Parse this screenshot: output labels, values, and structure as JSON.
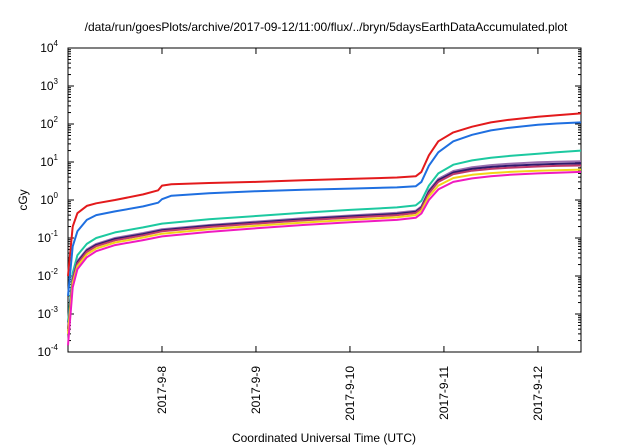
{
  "chart_data": {
    "type": "line",
    "title": "/data/run/goesPlots/archive/2017-09-12/11:00/flux/../bryn/5daysEarthDataAccumulated.plot",
    "xlabel": "Coordinated Universal Time (UTC)",
    "ylabel": "cGy",
    "y_scale": "log",
    "ylim": [
      0.0001,
      10000
    ],
    "xlim": [
      "2017-09-07T00:00",
      "2017-09-12T11:00"
    ],
    "grid": false,
    "legend": "none",
    "y_ticks": [
      {
        "base": "10",
        "exp": "-4",
        "value": 0.0001
      },
      {
        "base": "10",
        "exp": "-3",
        "value": 0.001
      },
      {
        "base": "10",
        "exp": "-2",
        "value": 0.01
      },
      {
        "base": "10",
        "exp": "-1",
        "value": 0.1
      },
      {
        "base": "10",
        "exp": "0",
        "value": 1
      },
      {
        "base": "10",
        "exp": "1",
        "value": 10
      },
      {
        "base": "10",
        "exp": "2",
        "value": 100
      },
      {
        "base": "10",
        "exp": "3",
        "value": 1000
      },
      {
        "base": "10",
        "exp": "4",
        "value": 10000
      }
    ],
    "x_ticks": [
      {
        "label": "2017-9-8",
        "value": "2017-09-08T00:00"
      },
      {
        "label": "2017-9-9",
        "value": "2017-09-09T00:00"
      },
      {
        "label": "2017-9-10",
        "value": "2017-09-10T00:00"
      },
      {
        "label": "2017-9-11",
        "value": "2017-09-11T00:00"
      },
      {
        "label": "2017-9-12",
        "value": "2017-09-12T00:00"
      }
    ],
    "series": [
      {
        "color": "#e31a1c",
        "x": [
          "2017-09-07T00:00",
          "2017-09-07T01:12",
          "2017-09-07T02:24",
          "2017-09-07T04:48",
          "2017-09-07T07:12",
          "2017-09-07T12:00",
          "2017-09-07T19:12",
          "2017-09-07T23:02",
          "2017-09-08T00:00",
          "2017-09-08T02:24",
          "2017-09-08T12:00",
          "2017-09-09T00:00",
          "2017-09-09T12:00",
          "2017-09-10T00:00",
          "2017-09-10T12:00",
          "2017-09-10T16:48",
          "2017-09-10T18:14",
          "2017-09-10T20:10",
          "2017-09-10T22:34",
          "2017-09-11T02:24",
          "2017-09-11T07:12",
          "2017-09-11T12:00",
          "2017-09-11T16:48",
          "2017-09-12T00:00",
          "2017-09-12T04:48",
          "2017-09-12T11:00"
        ],
        "values": [
          0.01,
          0.2,
          0.45,
          0.7,
          0.82,
          1.0,
          1.4,
          1.8,
          2.4,
          2.6,
          2.8,
          3.0,
          3.3,
          3.6,
          3.9,
          4.2,
          5.5,
          15,
          35,
          60,
          85,
          110,
          130,
          155,
          170,
          190
        ]
      },
      {
        "color": "#1f6fe0",
        "x": [
          "2017-09-07T00:00",
          "2017-09-07T01:12",
          "2017-09-07T02:24",
          "2017-09-07T04:48",
          "2017-09-07T07:12",
          "2017-09-07T12:00",
          "2017-09-07T19:12",
          "2017-09-07T23:02",
          "2017-09-08T00:00",
          "2017-09-08T02:24",
          "2017-09-08T12:00",
          "2017-09-09T00:00",
          "2017-09-09T12:00",
          "2017-09-10T00:00",
          "2017-09-10T12:00",
          "2017-09-10T16:48",
          "2017-09-10T18:14",
          "2017-09-10T20:10",
          "2017-09-10T22:34",
          "2017-09-11T02:24",
          "2017-09-11T07:12",
          "2017-09-11T12:00",
          "2017-09-11T16:48",
          "2017-09-12T00:00",
          "2017-09-12T04:48",
          "2017-09-12T11:00"
        ],
        "values": [
          0.003,
          0.06,
          0.15,
          0.3,
          0.4,
          0.5,
          0.68,
          0.85,
          1.05,
          1.3,
          1.5,
          1.7,
          1.85,
          2.0,
          2.15,
          2.3,
          3.0,
          8,
          18,
          35,
          52,
          68,
          80,
          95,
          103,
          110
        ]
      },
      {
        "color": "#1cc9a0",
        "x": [
          "2017-09-07T00:00",
          "2017-09-07T01:12",
          "2017-09-07T02:24",
          "2017-09-07T04:48",
          "2017-09-07T07:12",
          "2017-09-07T12:00",
          "2017-09-07T19:12",
          "2017-09-08T00:00",
          "2017-09-08T12:00",
          "2017-09-09T00:00",
          "2017-09-09T12:00",
          "2017-09-10T00:00",
          "2017-09-10T12:00",
          "2017-09-10T16:48",
          "2017-09-10T18:14",
          "2017-09-10T20:10",
          "2017-09-10T22:34",
          "2017-09-11T02:24",
          "2017-09-11T07:12",
          "2017-09-11T12:00",
          "2017-09-11T16:48",
          "2017-09-12T00:00",
          "2017-09-12T04:48",
          "2017-09-12T11:00"
        ],
        "values": [
          0.0006,
          0.012,
          0.035,
          0.07,
          0.1,
          0.14,
          0.19,
          0.24,
          0.31,
          0.38,
          0.46,
          0.55,
          0.64,
          0.72,
          0.95,
          2.4,
          5.0,
          8.5,
          11,
          13,
          14.5,
          16.5,
          18,
          20
        ]
      },
      {
        "color": "#9a6fb0",
        "x": [
          "2017-09-07T00:00",
          "2017-09-07T01:12",
          "2017-09-07T02:24",
          "2017-09-07T04:48",
          "2017-09-07T07:12",
          "2017-09-07T12:00",
          "2017-09-07T19:12",
          "2017-09-08T00:00",
          "2017-09-08T12:00",
          "2017-09-09T00:00",
          "2017-09-09T12:00",
          "2017-09-10T00:00",
          "2017-09-10T12:00",
          "2017-09-10T16:48",
          "2017-09-10T18:14",
          "2017-09-10T20:10",
          "2017-09-10T22:34",
          "2017-09-11T02:24",
          "2017-09-11T07:12",
          "2017-09-11T12:00",
          "2017-09-11T16:48",
          "2017-09-12T00:00",
          "2017-09-12T04:48",
          "2017-09-12T11:00"
        ],
        "values": [
          0.0004,
          0.009,
          0.025,
          0.05,
          0.07,
          0.1,
          0.135,
          0.17,
          0.22,
          0.27,
          0.33,
          0.39,
          0.46,
          0.52,
          0.68,
          1.8,
          3.6,
          5.8,
          7.3,
          8.3,
          9.0,
          9.8,
          10.2,
          10.5
        ]
      },
      {
        "color": "#2e1a6e",
        "x": [
          "2017-09-07T00:00",
          "2017-09-07T01:12",
          "2017-09-07T02:24",
          "2017-09-07T04:48",
          "2017-09-07T07:12",
          "2017-09-07T12:00",
          "2017-09-07T19:12",
          "2017-09-08T00:00",
          "2017-09-08T12:00",
          "2017-09-09T00:00",
          "2017-09-09T12:00",
          "2017-09-10T00:00",
          "2017-09-10T12:00",
          "2017-09-10T16:48",
          "2017-09-10T18:14",
          "2017-09-10T20:10",
          "2017-09-10T22:34",
          "2017-09-11T02:24",
          "2017-09-11T07:12",
          "2017-09-11T12:00",
          "2017-09-11T16:48",
          "2017-09-12T00:00",
          "2017-09-12T04:48",
          "2017-09-12T11:00"
        ],
        "values": [
          0.0004,
          0.008,
          0.023,
          0.047,
          0.066,
          0.094,
          0.127,
          0.16,
          0.21,
          0.255,
          0.31,
          0.37,
          0.43,
          0.49,
          0.64,
          1.65,
          3.3,
          5.3,
          6.6,
          7.4,
          8.0,
          8.6,
          8.9,
          9.2
        ]
      },
      {
        "color": "#c0396b",
        "x": [
          "2017-09-07T00:00",
          "2017-09-07T01:12",
          "2017-09-07T02:24",
          "2017-09-07T04:48",
          "2017-09-07T07:12",
          "2017-09-07T12:00",
          "2017-09-07T19:12",
          "2017-09-08T00:00",
          "2017-09-08T12:00",
          "2017-09-09T00:00",
          "2017-09-09T12:00",
          "2017-09-10T00:00",
          "2017-09-10T12:00",
          "2017-09-10T16:48",
          "2017-09-10T18:14",
          "2017-09-10T20:10",
          "2017-09-10T22:34",
          "2017-09-11T02:24",
          "2017-09-11T07:12",
          "2017-09-11T12:00",
          "2017-09-11T16:48",
          "2017-09-12T00:00",
          "2017-09-12T04:48",
          "2017-09-12T11:00"
        ],
        "values": [
          0.00035,
          0.0075,
          0.021,
          0.043,
          0.061,
          0.087,
          0.118,
          0.15,
          0.195,
          0.24,
          0.29,
          0.345,
          0.4,
          0.455,
          0.6,
          1.5,
          3.0,
          4.8,
          5.9,
          6.6,
          7.1,
          7.6,
          7.9,
          8.1
        ]
      },
      {
        "color": "#f2d518",
        "x": [
          "2017-09-07T00:00",
          "2017-09-07T01:12",
          "2017-09-07T02:24",
          "2017-09-07T04:48",
          "2017-09-07T07:12",
          "2017-09-07T12:00",
          "2017-09-07T19:12",
          "2017-09-08T00:00",
          "2017-09-08T12:00",
          "2017-09-09T00:00",
          "2017-09-09T12:00",
          "2017-09-10T00:00",
          "2017-09-10T12:00",
          "2017-09-10T16:48",
          "2017-09-10T18:14",
          "2017-09-10T20:10",
          "2017-09-10T22:34",
          "2017-09-11T02:24",
          "2017-09-11T07:12",
          "2017-09-11T12:00",
          "2017-09-11T16:48",
          "2017-09-12T00:00",
          "2017-09-12T04:48",
          "2017-09-12T11:00"
        ],
        "values": [
          0.0003,
          0.0065,
          0.018,
          0.037,
          0.053,
          0.076,
          0.103,
          0.13,
          0.17,
          0.21,
          0.255,
          0.3,
          0.35,
          0.4,
          0.52,
          1.25,
          2.4,
          3.8,
          4.6,
          5.1,
          5.5,
          5.9,
          6.1,
          6.3
        ]
      },
      {
        "color": "#f01ac0",
        "x": [
          "2017-09-07T00:00",
          "2017-09-07T01:12",
          "2017-09-07T02:24",
          "2017-09-07T04:48",
          "2017-09-07T07:12",
          "2017-09-07T12:00",
          "2017-09-07T19:12",
          "2017-09-08T00:00",
          "2017-09-08T12:00",
          "2017-09-09T00:00",
          "2017-09-09T12:00",
          "2017-09-10T00:00",
          "2017-09-10T12:00",
          "2017-09-10T16:48",
          "2017-09-10T18:14",
          "2017-09-10T20:10",
          "2017-09-10T22:34",
          "2017-09-11T02:24",
          "2017-09-11T07:12",
          "2017-09-11T12:00",
          "2017-09-11T16:48",
          "2017-09-12T00:00",
          "2017-09-12T04:48",
          "2017-09-12T11:00"
        ],
        "values": [
          0.00015,
          0.005,
          0.015,
          0.031,
          0.045,
          0.065,
          0.088,
          0.11,
          0.145,
          0.18,
          0.22,
          0.26,
          0.3,
          0.34,
          0.44,
          1.0,
          1.9,
          3.0,
          3.7,
          4.2,
          4.6,
          5.0,
          5.2,
          5.5
        ]
      }
    ]
  }
}
